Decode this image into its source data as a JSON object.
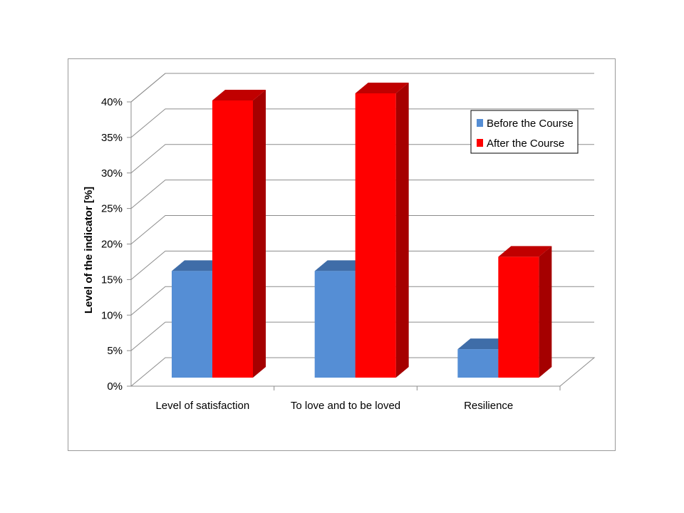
{
  "chart_data": {
    "type": "bar",
    "style": "3d-clustered-column",
    "categories": [
      "Level of satisfaction",
      "To love and to be loved",
      "Resilience"
    ],
    "series": [
      {
        "name": "Before the Course",
        "values": [
          15,
          15,
          4
        ],
        "color": "#558ed5",
        "top_color": "#3f6da8",
        "side_color": "#3f6da8"
      },
      {
        "name": "After the Course",
        "values": [
          39,
          40,
          17
        ],
        "color": "#ff0000",
        "top_color": "#c00000",
        "side_color": "#a50000"
      }
    ],
    "ylabel": "Level of the indicator [%]",
    "ylim": [
      0,
      40
    ],
    "yticks": [
      0,
      5,
      10,
      15,
      20,
      25,
      30,
      35,
      40
    ],
    "ytick_format": "{v}%",
    "grid": true,
    "legend_position": "top-right"
  }
}
